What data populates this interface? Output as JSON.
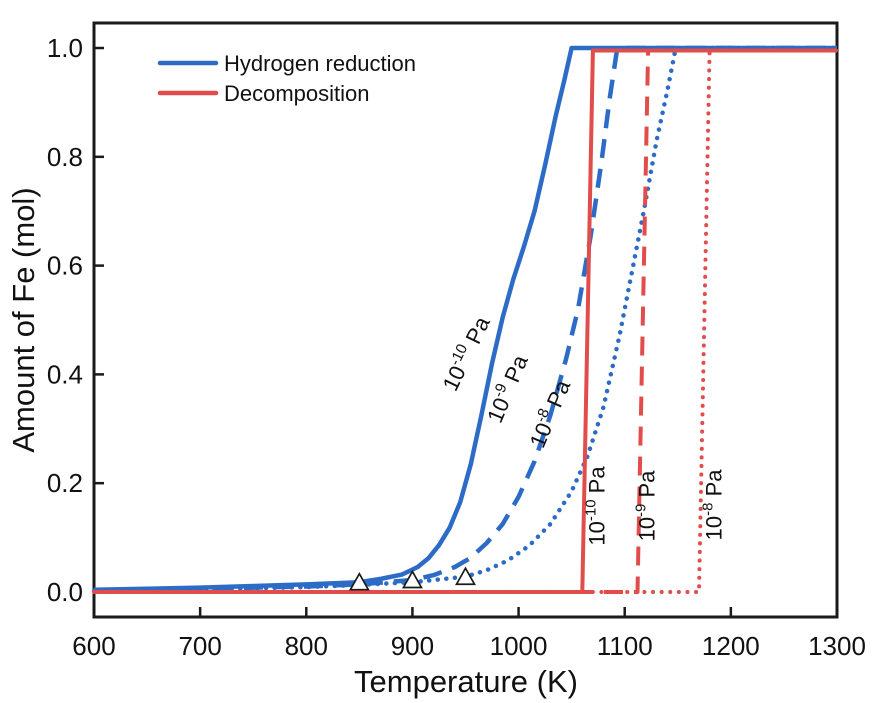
{
  "figure": {
    "background": "#ffffff",
    "axis_color": "#1a1a1a",
    "text_color": "#111111"
  },
  "chart_data": {
    "type": "line",
    "title": "",
    "xlabel": "Temperature (K)",
    "ylabel": "Amount of Fe (mol)",
    "xlim": [
      600,
      1300
    ],
    "ylim": [
      -0.046,
      1.046
    ],
    "grid": false,
    "xticks": [
      600,
      700,
      800,
      900,
      1000,
      1100,
      1200,
      1300
    ],
    "ytick_values": [
      0.0,
      0.2,
      0.4,
      0.6,
      0.8,
      1.0
    ],
    "ytick_labels": [
      "0.0",
      "0.2",
      "0.4",
      "0.6",
      "0.8",
      "1.0"
    ],
    "legend": {
      "position": "upper-left-inside",
      "items": [
        {
          "label": "Hydrogen reduction",
          "color": "#2d6cc6"
        },
        {
          "label": "Decomposition",
          "color": "#e14d4b"
        }
      ]
    },
    "series": [
      {
        "name": "Hydrogen reduction, 1e-10 Pa",
        "group": "hydrogen",
        "color": "#2d6cc6",
        "style": "solid",
        "width": 4.5,
        "points": [
          [
            600,
            0.004
          ],
          [
            650,
            0.006
          ],
          [
            700,
            0.008
          ],
          [
            750,
            0.011
          ],
          [
            800,
            0.014
          ],
          [
            850,
            0.018
          ],
          [
            870,
            0.024
          ],
          [
            890,
            0.032
          ],
          [
            905,
            0.046
          ],
          [
            915,
            0.062
          ],
          [
            925,
            0.086
          ],
          [
            935,
            0.118
          ],
          [
            945,
            0.165
          ],
          [
            955,
            0.235
          ],
          [
            965,
            0.325
          ],
          [
            975,
            0.42
          ],
          [
            985,
            0.505
          ],
          [
            995,
            0.575
          ],
          [
            1005,
            0.635
          ],
          [
            1015,
            0.7
          ],
          [
            1025,
            0.785
          ],
          [
            1035,
            0.875
          ],
          [
            1043,
            0.94
          ],
          [
            1050,
            1.0
          ],
          [
            1300,
            1.0
          ]
        ]
      },
      {
        "name": "Hydrogen reduction, 1e-9 Pa",
        "group": "hydrogen",
        "color": "#2d6cc6",
        "style": "dashed",
        "width": 4.5,
        "points": [
          [
            600,
            0.003
          ],
          [
            700,
            0.006
          ],
          [
            800,
            0.01
          ],
          [
            850,
            0.014
          ],
          [
            900,
            0.022
          ],
          [
            920,
            0.031
          ],
          [
            940,
            0.046
          ],
          [
            955,
            0.063
          ],
          [
            970,
            0.09
          ],
          [
            985,
            0.125
          ],
          [
            1000,
            0.175
          ],
          [
            1015,
            0.24
          ],
          [
            1030,
            0.325
          ],
          [
            1045,
            0.43
          ],
          [
            1056,
            0.52
          ],
          [
            1068,
            0.655
          ],
          [
            1078,
            0.79
          ],
          [
            1086,
            0.91
          ],
          [
            1093,
            1.0
          ],
          [
            1300,
            1.0
          ]
        ]
      },
      {
        "name": "Hydrogen reduction, 1e-8 Pa",
        "group": "hydrogen",
        "color": "#2d6cc6",
        "style": "dotted",
        "width": 4.5,
        "points": [
          [
            600,
            0.002
          ],
          [
            700,
            0.005
          ],
          [
            800,
            0.009
          ],
          [
            850,
            0.013
          ],
          [
            900,
            0.018
          ],
          [
            950,
            0.028
          ],
          [
            970,
            0.04
          ],
          [
            990,
            0.058
          ],
          [
            1010,
            0.085
          ],
          [
            1030,
            0.125
          ],
          [
            1050,
            0.185
          ],
          [
            1065,
            0.25
          ],
          [
            1080,
            0.34
          ],
          [
            1095,
            0.47
          ],
          [
            1105,
            0.57
          ],
          [
            1118,
            0.7
          ],
          [
            1130,
            0.83
          ],
          [
            1140,
            0.92
          ],
          [
            1148,
            1.0
          ],
          [
            1300,
            1.0
          ]
        ]
      },
      {
        "name": "Decomposition, 1e-10 Pa",
        "group": "decomposition",
        "color": "#e14d4b",
        "style": "solid",
        "width": 4,
        "points": [
          [
            600,
            0.0
          ],
          [
            1060,
            0.0
          ],
          [
            1070,
            1.0
          ],
          [
            1300,
            1.0
          ]
        ]
      },
      {
        "name": "Decomposition, 1e-9 Pa",
        "group": "decomposition",
        "color": "#e14d4b",
        "style": "dashed",
        "width": 4,
        "points": [
          [
            600,
            0.0
          ],
          [
            1112,
            0.0
          ],
          [
            1122,
            1.0
          ],
          [
            1300,
            1.0
          ]
        ]
      },
      {
        "name": "Decomposition, 1e-8 Pa",
        "group": "decomposition",
        "color": "#e14d4b",
        "style": "dotted",
        "width": 4,
        "points": [
          [
            600,
            0.0
          ],
          [
            1170,
            0.0
          ],
          [
            1180,
            1.0
          ],
          [
            1300,
            1.0
          ]
        ]
      }
    ],
    "markers": {
      "symbol": "triangle-up",
      "fill": "#ffffff",
      "edge_color": "#1a1a1a",
      "points": [
        [
          850,
          0.018
        ],
        [
          900,
          0.022
        ],
        [
          950,
          0.028
        ]
      ]
    },
    "annotations": [
      {
        "base": "10",
        "exponent": "-10",
        "unit": "Pa",
        "x": 957,
        "y": 0.432,
        "angle": -64,
        "group": "hydrogen"
      },
      {
        "base": "10",
        "exponent": "-9",
        "unit": "Pa",
        "x": 996,
        "y": 0.368,
        "angle": -67,
        "group": "hydrogen"
      },
      {
        "base": "10",
        "exponent": "-8",
        "unit": "Pa",
        "x": 1036,
        "y": 0.322,
        "angle": -67,
        "group": "hydrogen"
      },
      {
        "base": "10",
        "exponent": "-10",
        "unit": "Pa",
        "x": 1081,
        "y": 0.158,
        "angle": -90,
        "group": "decomposition"
      },
      {
        "base": "10",
        "exponent": "-9",
        "unit": "Pa",
        "x": 1128,
        "y": 0.158,
        "angle": -90,
        "group": "decomposition"
      },
      {
        "base": "10",
        "exponent": "-8",
        "unit": "Pa",
        "x": 1191,
        "y": 0.16,
        "angle": -90,
        "group": "decomposition"
      }
    ]
  }
}
